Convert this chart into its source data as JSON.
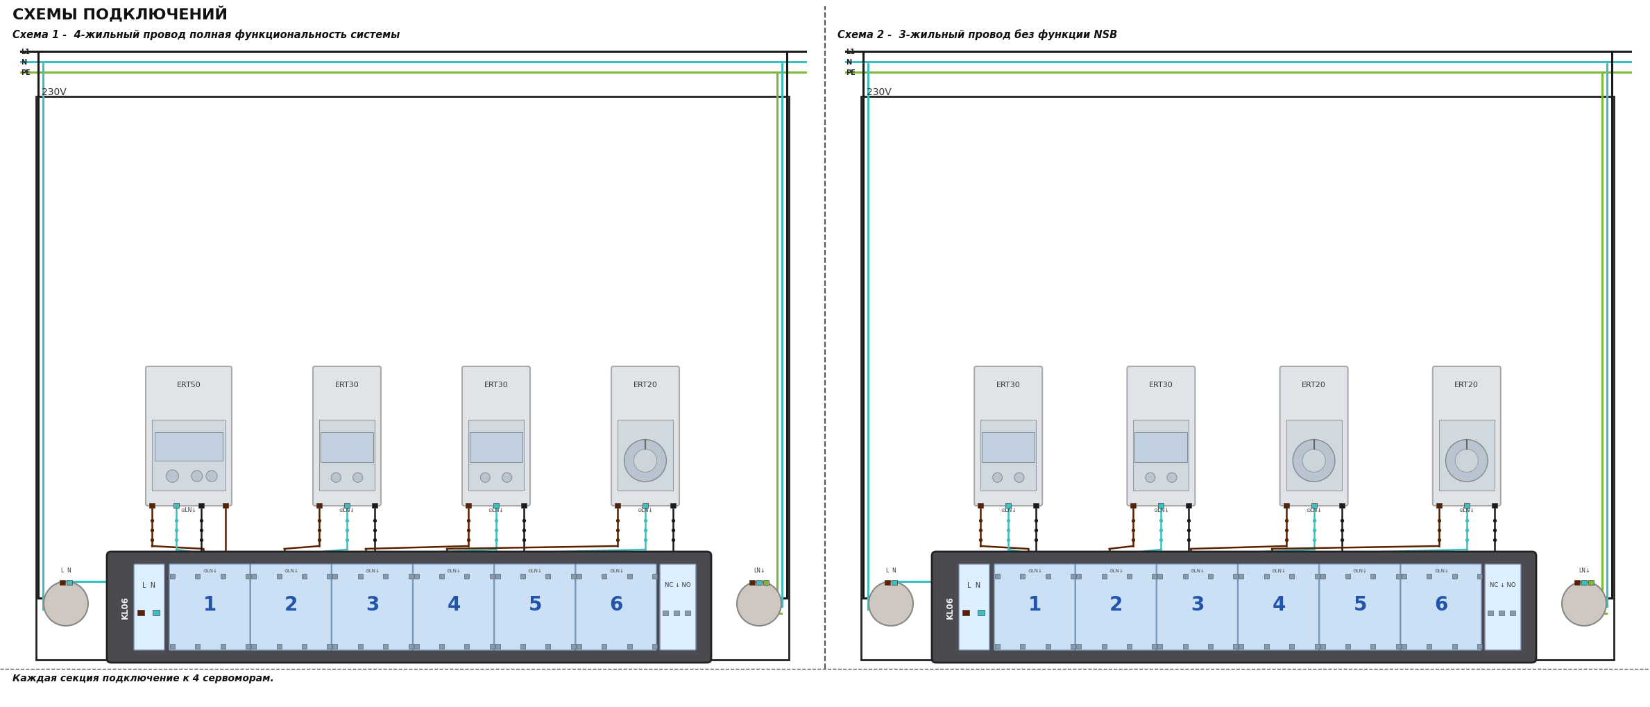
{
  "title": "СХЕМЫ ПОДКЛЮЧЕНИЙ",
  "schema1_title": "Схема 1 -  4-жильный провод полная функциональность системы",
  "schema2_title": "Схема 2 -  3-жильный провод без функции NSB",
  "footer": "Каждая секция подключение к 4 сервоморам.",
  "bg_color": "#ffffff",
  "col_black": "#1a1a1a",
  "col_teal": "#3dbfbf",
  "col_green": "#7db83a",
  "col_brown": "#5a2000",
  "col_panel": "#d0d4d8",
  "col_controller_bg": "#4a4a50",
  "col_zone": "#cce0f5",
  "col_actuator": "#cfc8c0",
  "thermostats_s1": [
    "ERT50",
    "ERT30",
    "ERT30",
    "ERT20"
  ],
  "thermostats_s2": [
    "ERT30",
    "ERT30",
    "ERT20",
    "ERT20"
  ],
  "zones": [
    "1",
    "2",
    "3",
    "4",
    "5",
    "6"
  ]
}
